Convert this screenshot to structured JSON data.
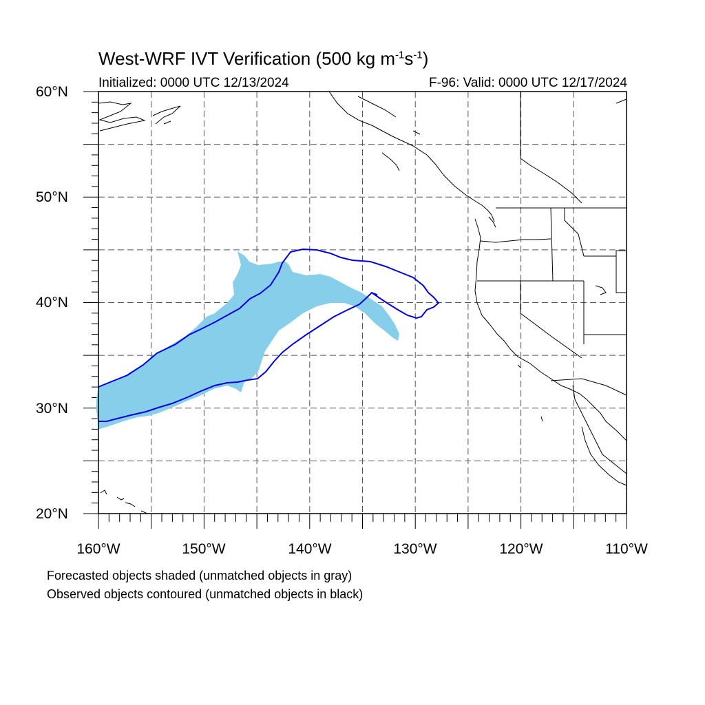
{
  "title": {
    "main": "West-WRF IVT Verification (500 kg m",
    "exp1": "-1",
    "mid": "s",
    "exp2": "-1",
    "end": ")"
  },
  "subtitle_left": "Initialized: 0000 UTC 12/13/2024",
  "subtitle_right": "F-96: Valid: 0000 UTC 12/17/2024",
  "lat_labels": [
    "60°N",
    "50°N",
    "40°N",
    "30°N",
    "20°N"
  ],
  "lon_labels": [
    "160°W",
    "150°W",
    "140°W",
    "130°W",
    "120°W",
    "110°W"
  ],
  "notes": [
    "Forecasted objects shaded (unmatched objects in gray)",
    "Observed objects contoured (unmatched objects in black)"
  ],
  "map_extent": {
    "lon": [
      -160,
      -110
    ],
    "lat": [
      20,
      60
    ]
  },
  "grid": "dashed every 5°",
  "colors": {
    "forecast_fill": "#87ceeb",
    "observed_contour": "#0000dd",
    "coastline": "#000000",
    "grid": "#555555"
  }
}
